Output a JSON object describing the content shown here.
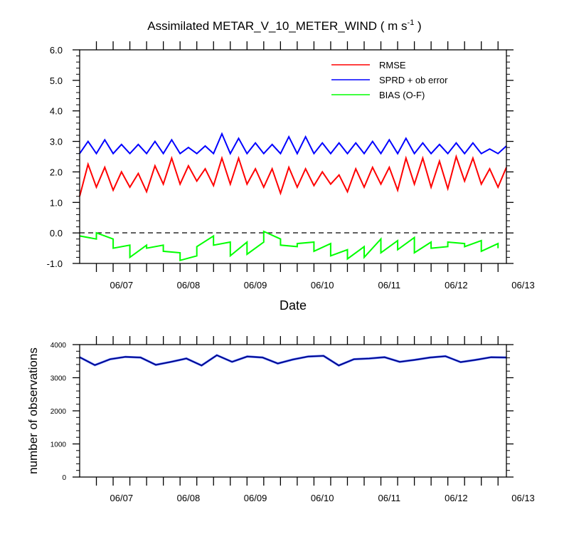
{
  "chart_data": [
    {
      "type": "line",
      "title": "Assimilated METAR_V_10_METER_WIND ( m s",
      "title_exponent": "-1",
      "title_close": " )",
      "xlabel": "Date",
      "ylabel": "",
      "ylim": [
        -1.0,
        6.0
      ],
      "yticks": [
        "6.0",
        "5.0",
        "4.0",
        "3.0",
        "2.0",
        "1.0",
        "0.0",
        "-1.0"
      ],
      "x_tick_labels": [
        "06/07",
        "06/08",
        "06/09",
        "06/10",
        "06/11",
        "06/12",
        "06/13"
      ],
      "zero_line": true,
      "legend_position": "top-right",
      "colors": {
        "RMSE": "#ff0000",
        "SPRD + ob error": "#0000ff",
        "BIAS (O-F)": "#00ff00"
      },
      "series": [
        {
          "name": "RMSE",
          "color": "#ff0000",
          "values": [
            1.2,
            2.25,
            1.5,
            2.15,
            1.4,
            2.0,
            1.5,
            1.95,
            1.35,
            2.2,
            1.6,
            2.45,
            1.6,
            2.2,
            1.7,
            2.1,
            1.55,
            2.45,
            1.6,
            2.45,
            1.6,
            2.1,
            1.5,
            2.1,
            1.3,
            2.15,
            1.5,
            2.1,
            1.55,
            2.0,
            1.6,
            1.9,
            1.35,
            2.1,
            1.5,
            2.15,
            1.6,
            2.15,
            1.4,
            2.45,
            1.6,
            2.45,
            1.5,
            2.35,
            1.45,
            2.5,
            1.7,
            2.45,
            1.6,
            2.1,
            1.5,
            2.15
          ]
        },
        {
          "name": "SPRD + ob error",
          "color": "#0000ff",
          "values": [
            2.6,
            3.0,
            2.6,
            3.05,
            2.6,
            2.9,
            2.6,
            2.9,
            2.6,
            3.0,
            2.6,
            3.05,
            2.6,
            2.8,
            2.6,
            2.85,
            2.6,
            3.25,
            2.6,
            3.1,
            2.6,
            2.95,
            2.6,
            2.9,
            2.6,
            3.15,
            2.6,
            3.15,
            2.6,
            2.95,
            2.6,
            2.95,
            2.6,
            2.95,
            2.6,
            3.0,
            2.6,
            3.05,
            2.6,
            3.1,
            2.6,
            2.95,
            2.6,
            2.9,
            2.6,
            2.95,
            2.6,
            2.95,
            2.6,
            2.75,
            2.6,
            2.85
          ]
        },
        {
          "name": "BIAS (O-F)",
          "color": "#00ff00",
          "x": [
            0,
            2,
            2,
            4,
            4,
            6,
            6,
            8,
            8,
            10,
            10,
            12,
            12,
            14,
            14,
            16,
            16,
            18,
            18,
            20,
            20,
            22,
            22,
            24,
            24,
            26,
            26,
            28,
            28,
            30,
            30,
            32,
            32,
            34,
            34,
            36,
            36,
            38,
            38,
            40,
            40,
            42,
            42,
            44,
            44,
            46,
            46,
            48,
            48,
            50,
            50
          ],
          "values": [
            -0.1,
            -0.2,
            0.0,
            -0.2,
            -0.5,
            -0.4,
            -0.8,
            -0.4,
            -0.5,
            -0.4,
            -0.6,
            -0.65,
            -0.9,
            -0.75,
            -0.45,
            -0.1,
            -0.4,
            -0.3,
            -0.75,
            -0.3,
            -0.7,
            -0.3,
            0.05,
            -0.2,
            -0.4,
            -0.45,
            -0.35,
            -0.3,
            -0.6,
            -0.35,
            -0.75,
            -0.55,
            -0.85,
            -0.45,
            -0.8,
            -0.2,
            -0.65,
            -0.25,
            -0.55,
            -0.15,
            -0.65,
            -0.3,
            -0.5,
            -0.45,
            -0.3,
            -0.35,
            -0.45,
            -0.25,
            -0.6,
            -0.35,
            -0.5
          ]
        }
      ]
    },
    {
      "type": "line",
      "title": "",
      "xlabel": "",
      "ylabel": "number of observations",
      "ylim": [
        0,
        4000
      ],
      "yticks": [
        "4000",
        "3000",
        "2000",
        "1000",
        "0"
      ],
      "x_tick_labels": [
        "06/07",
        "06/08",
        "06/09",
        "06/10",
        "06/11",
        "06/12",
        "06/13"
      ],
      "colors": {
        "observations": "#000080"
      },
      "series": [
        {
          "color": "#000080",
          "values": [
            3620,
            3380,
            3560,
            3630,
            3610,
            3390,
            3480,
            3580,
            3370,
            3680,
            3480,
            3640,
            3610,
            3430,
            3550,
            3640,
            3660,
            3370,
            3560,
            3580,
            3620,
            3480,
            3540,
            3610,
            3650,
            3470,
            3540,
            3620,
            3610
          ]
        }
      ]
    }
  ]
}
